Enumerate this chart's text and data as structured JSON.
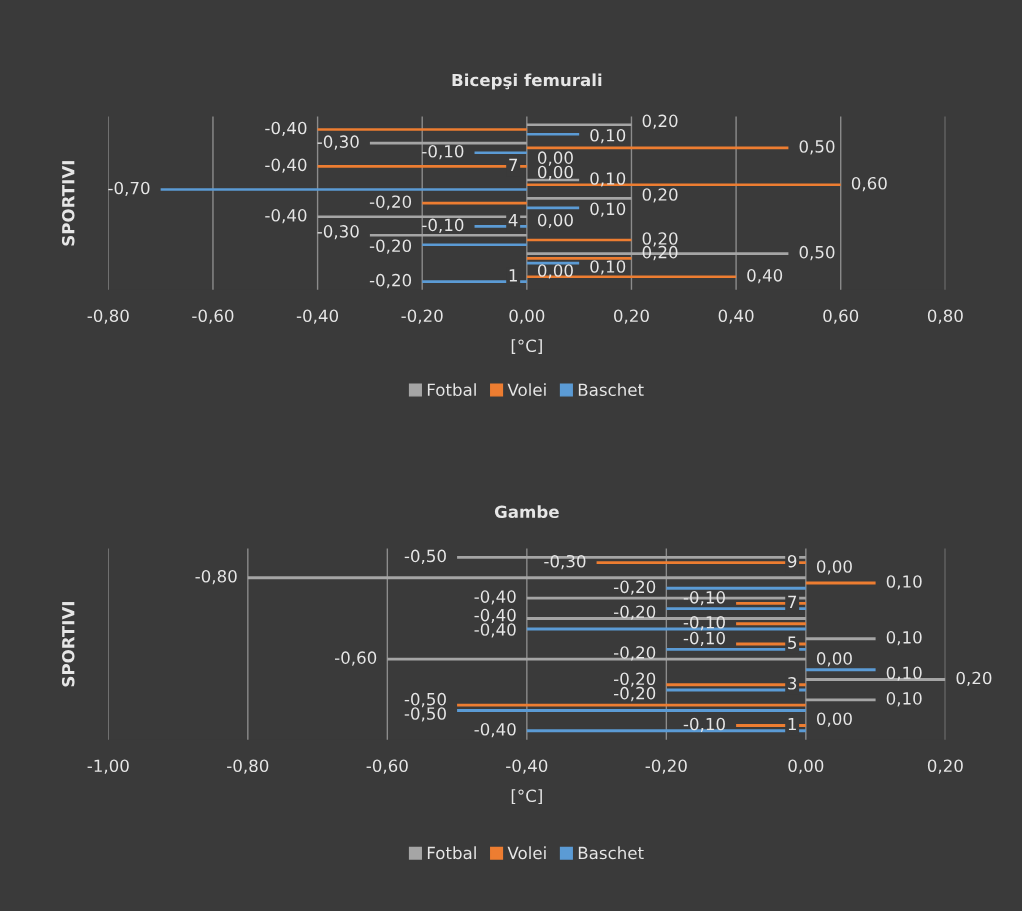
{
  "chart_data": [
    {
      "type": "bar",
      "orientation": "horizontal",
      "title": "Bicepşi femurali",
      "xlabel": "[°C]",
      "ylabel": "SPORTIVI",
      "categories": [
        null,
        null,
        "7",
        null,
        null,
        "4",
        null,
        null,
        "1"
      ],
      "series": [
        {
          "name": "Fotbal",
          "color": "#a5a5a5",
          "values": [
            0.2,
            -0.3,
            0.0,
            0.1,
            0.2,
            -0.4,
            -0.3,
            0.5,
            0.0
          ],
          "value_labels": [
            "0,20",
            "-0,30",
            "0,00",
            "0,10",
            "0,20",
            "-0,40",
            "-0,30",
            "0,50",
            "0,00"
          ]
        },
        {
          "name": "Volei",
          "color": "#ed7d31",
          "values": [
            -0.4,
            0.5,
            -0.4,
            0.6,
            -0.2,
            0.0,
            0.2,
            0.2,
            0.4
          ],
          "value_labels": [
            "-0,40",
            "0,50",
            "-0,40",
            "0,60",
            "-0,20",
            "0,00",
            "0,20",
            "0,20",
            "0,40"
          ]
        },
        {
          "name": "Baschet",
          "color": "#5b9bd5",
          "values": [
            0.1,
            -0.1,
            0.0,
            -0.7,
            0.1,
            -0.1,
            -0.2,
            0.1,
            -0.2
          ],
          "value_labels": [
            "0,10",
            "-0,10",
            "0,00",
            "-0,70",
            "0,10",
            "-0,10",
            "-0,20",
            "0,10",
            "-0,20"
          ]
        }
      ],
      "xlim": [
        -0.8,
        0.8
      ],
      "xticks": [
        {
          "value": -0.8,
          "label": "-0,80"
        },
        {
          "value": -0.6,
          "label": "-0,60"
        },
        {
          "value": -0.4,
          "label": "-0,40"
        },
        {
          "value": -0.2,
          "label": "-0,20"
        },
        {
          "value": 0.0,
          "label": "0,00"
        },
        {
          "value": 0.2,
          "label": "0,20"
        },
        {
          "value": 0.4,
          "label": "0,40"
        },
        {
          "value": 0.6,
          "label": "0,60"
        },
        {
          "value": 0.8,
          "label": "0,80"
        }
      ],
      "grid": "x",
      "legend": "bottom"
    },
    {
      "type": "bar",
      "orientation": "horizontal",
      "title": "Gambe",
      "xlabel": "[°C]",
      "ylabel": "SPORTIVI",
      "categories": [
        "9",
        null,
        "7",
        null,
        "5",
        null,
        "3",
        null,
        "1"
      ],
      "series": [
        {
          "name": "Fotbal",
          "color": "#a5a5a5",
          "values": [
            -0.5,
            -0.8,
            -0.4,
            -0.4,
            0.1,
            -0.6,
            0.2,
            0.1,
            0.0
          ],
          "value_labels": [
            "-0,50",
            "-0,80",
            "-0,40",
            "-0,40",
            "0,10",
            "-0,60",
            "0,20",
            "0,10",
            "0,00"
          ]
        },
        {
          "name": "Volei",
          "color": "#ed7d31",
          "values": [
            -0.3,
            0.1,
            -0.1,
            -0.1,
            -0.1,
            0.0,
            -0.2,
            -0.5,
            -0.1
          ],
          "value_labels": [
            "-0,30",
            "0,10",
            "-0,10",
            "-0,10",
            "-0,10",
            "0,00",
            "-0,20",
            "-0,50",
            "-0,10"
          ]
        },
        {
          "name": "Baschet",
          "color": "#5b9bd5",
          "values": [
            0.0,
            -0.2,
            -0.2,
            -0.4,
            -0.2,
            0.1,
            -0.2,
            -0.5,
            -0.4
          ],
          "value_labels": [
            "0,00",
            "-0,20",
            "-0,20",
            "-0,40",
            "-0,20",
            "0,10",
            "-0,20",
            "-0,50",
            "-0,40"
          ]
        }
      ],
      "xlim": [
        -1.0,
        0.2
      ],
      "xticks": [
        {
          "value": -1.0,
          "label": "-1,00"
        },
        {
          "value": -0.8,
          "label": "-0,80"
        },
        {
          "value": -0.6,
          "label": "-0,60"
        },
        {
          "value": -0.4,
          "label": "-0,40"
        },
        {
          "value": -0.2,
          "label": "-0,20"
        },
        {
          "value": 0.0,
          "label": "0,00"
        },
        {
          "value": 0.2,
          "label": "0,20"
        }
      ],
      "grid": "x",
      "legend": "bottom"
    }
  ]
}
